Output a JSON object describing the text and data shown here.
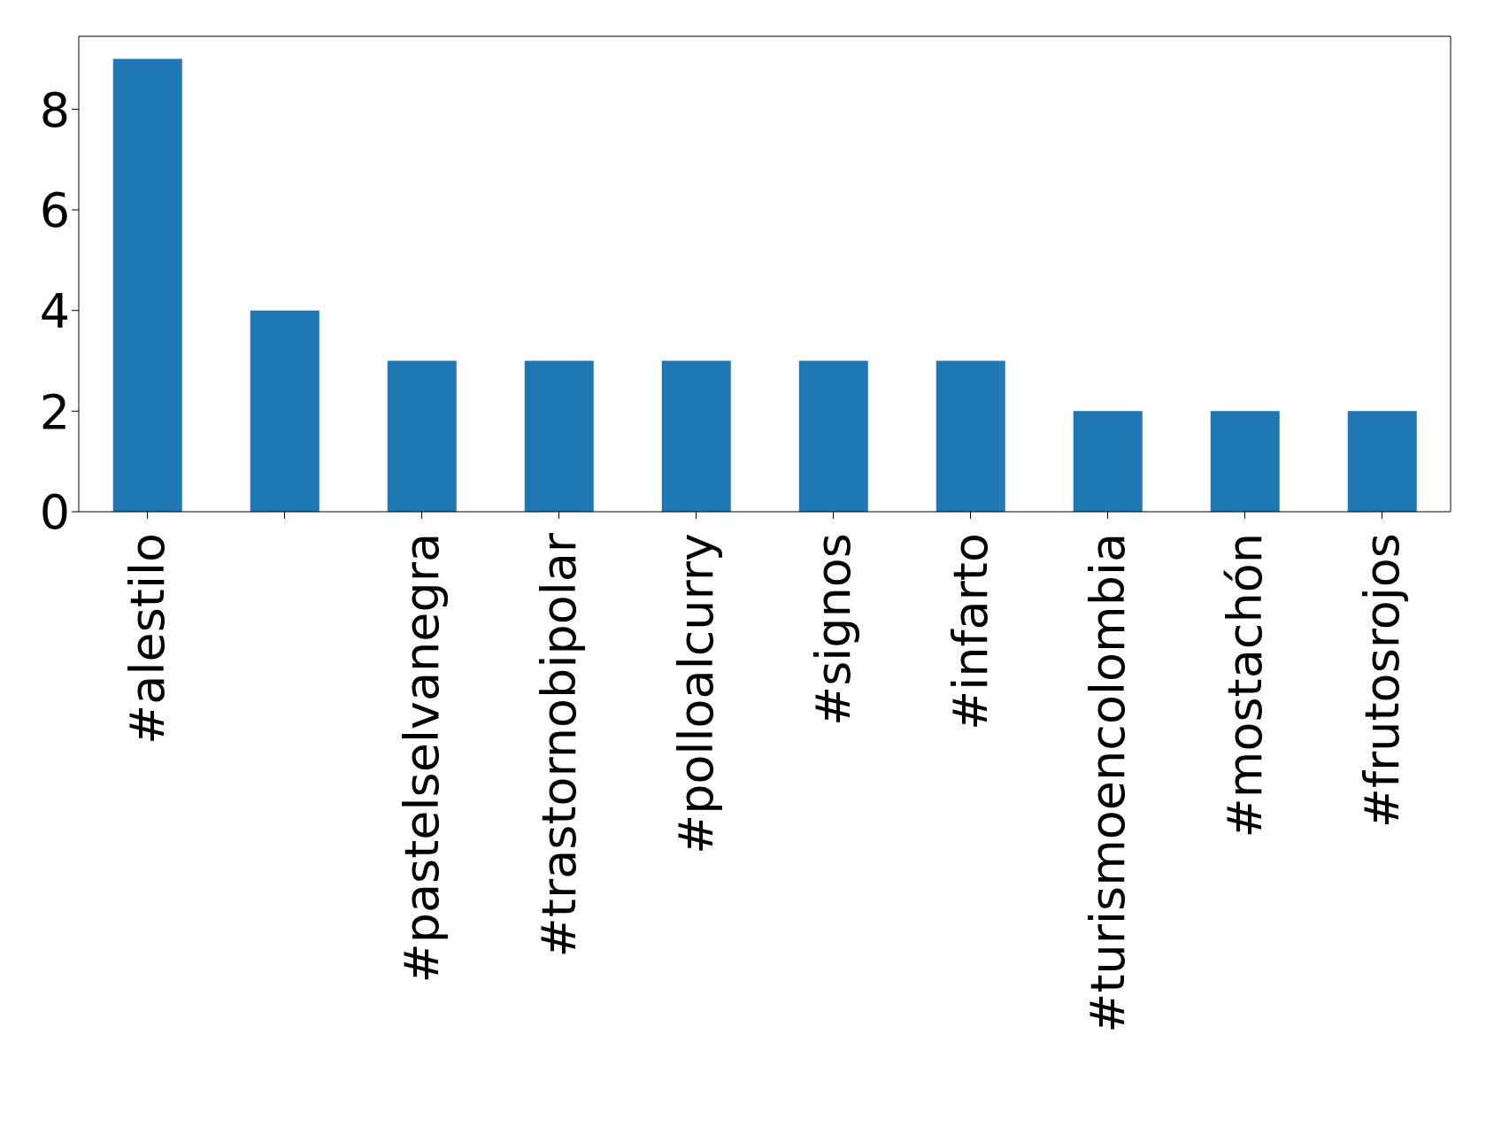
{
  "chart_data": {
    "type": "bar",
    "categories": [
      "#alestilo",
      null,
      "#pastelselvanegra",
      "#trastornobipolar",
      "#polloalcurry",
      "#signos",
      "#infarto",
      "#turismoencolombia",
      "#mostachón",
      "#frutosrojos"
    ],
    "values": [
      9,
      4,
      3,
      3,
      3,
      3,
      3,
      2,
      2,
      2
    ],
    "color": "#1f77b4",
    "ylim": [
      0,
      9.45
    ],
    "yticks": [
      0,
      2,
      4,
      6,
      8
    ],
    "grid": false
  }
}
